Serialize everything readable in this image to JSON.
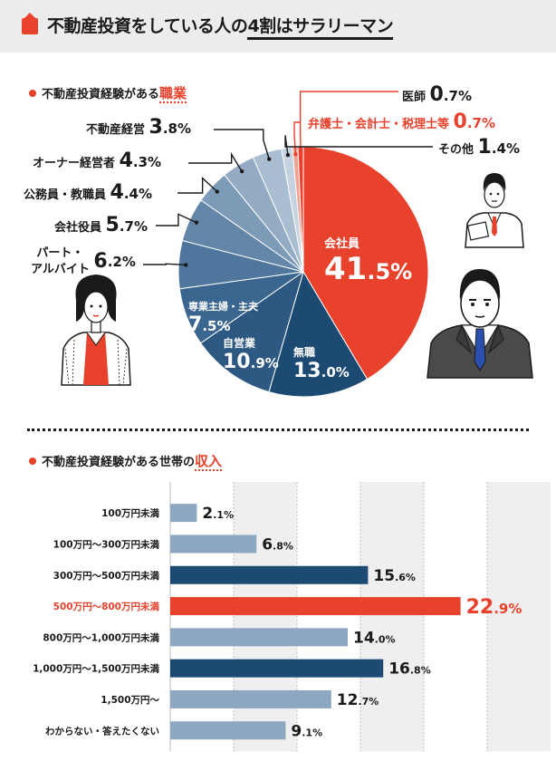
{
  "header": {
    "title_prefix": "不動産投資をしている人の",
    "title_highlight": "4割はサラリーマン"
  },
  "occupation_section": {
    "label_prefix": "不動産投資経験がある",
    "label_accent": "職業"
  },
  "income_section": {
    "label_prefix": "不動産投資経験がある世帯の",
    "label_accent": "収入"
  },
  "colors": {
    "accent_red": "#e8412c",
    "navy": "#1d4a73",
    "steel": "#315f87",
    "light_steel": "#8ca7bf"
  },
  "chart_data": [
    {
      "type": "pie",
      "title": "",
      "slices": [
        {
          "label": "会社員",
          "value": 41.5,
          "num": "41",
          "dec": ".5",
          "color": "#e8412c"
        },
        {
          "label": "無職",
          "value": 13.0,
          "num": "13",
          "dec": ".0",
          "color": "#1d4a73"
        },
        {
          "label": "自営業",
          "value": 10.9,
          "num": "10",
          "dec": ".9",
          "color": "#2c5882"
        },
        {
          "label": "専業主婦・主夫",
          "value": 7.5,
          "num": "7",
          "dec": ".5",
          "color": "#3b6690"
        },
        {
          "label": "パート・\nアルバイト",
          "value": 6.2,
          "num": "6",
          "dec": ".2",
          "color": "#4f779d"
        },
        {
          "label": "会社役員",
          "value": 5.7,
          "num": "5",
          "dec": ".7",
          "color": "#6486a8"
        },
        {
          "label": "公務員・教職員",
          "value": 4.4,
          "num": "4",
          "dec": ".4",
          "color": "#7d9ab6"
        },
        {
          "label": "経営者",
          "value": 4.3,
          "num": "4",
          "dec": ".3",
          "color": "#93abc3"
        },
        {
          "label": "不動産経営",
          "value": 3.8,
          "num": "3",
          "dec": ".8",
          "color": "#aabed1"
        },
        {
          "label": "その他",
          "value": 1.4,
          "num": "1",
          "dec": ".4",
          "color": "#c5d3e0"
        },
        {
          "label": "弁護士・会計士・税理士等",
          "value": 0.7,
          "num": "0",
          "dec": ".7",
          "color": "#f3a191"
        },
        {
          "label": "医師",
          "value": 0.7,
          "num": "0",
          "dec": ".7",
          "color": "#e8412c"
        }
      ]
    },
    {
      "type": "bar",
      "orientation": "horizontal",
      "title": "",
      "categories": [
        "100万円未満",
        "100万円〜300万円未満",
        "300万円〜500万円未満",
        "500万円〜800万円未満",
        "800万円〜1,000万円未満",
        "1,000万円〜1,500万円未満",
        "1,500万円〜",
        "わからない・答えたくない"
      ],
      "values": [
        2.1,
        6.8,
        15.6,
        22.9,
        14.0,
        16.8,
        12.7,
        9.1
      ],
      "value_num": [
        "2",
        "6",
        "15",
        "22",
        "14",
        "16",
        "12",
        "9"
      ],
      "value_dec": [
        ".1",
        ".8",
        ".6",
        ".9",
        ".0",
        ".8",
        ".7",
        ".1"
      ],
      "colors": [
        "#8ca7bf",
        "#8ca7bf",
        "#1d4a73",
        "#e8412c",
        "#8ca7bf",
        "#1d4a73",
        "#8ca7bf",
        "#8ca7bf"
      ],
      "xlim": [
        0,
        25
      ],
      "xticks": [
        "0",
        "5",
        "10",
        "15",
        "20",
        "25"
      ],
      "grid": "vertical dotted"
    }
  ]
}
